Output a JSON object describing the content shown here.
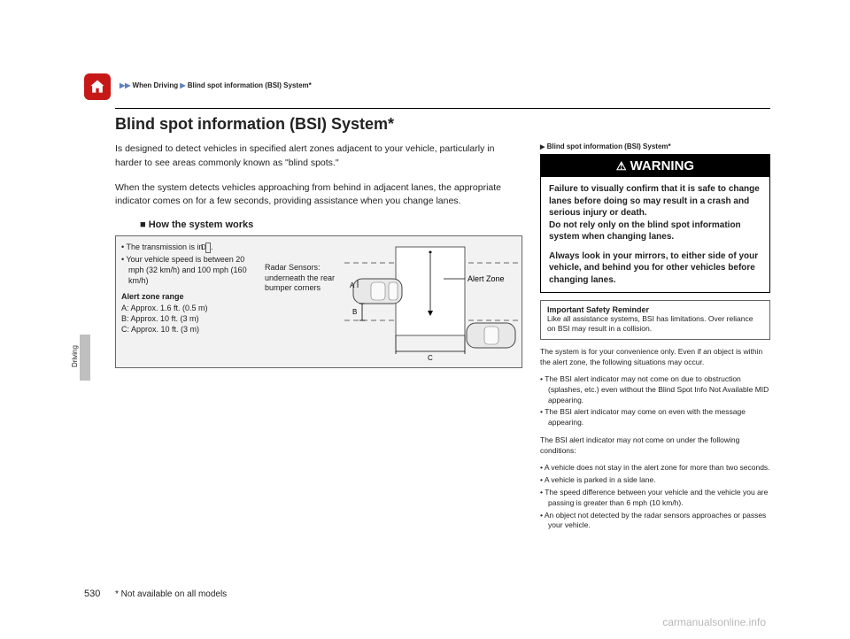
{
  "breadcrumb": {
    "seg1": "When Driving",
    "seg2": "Blind spot information (BSI) System*"
  },
  "title": "Blind spot information (BSI) System*",
  "intro1": "Is designed to detect vehicles in specified alert zones adjacent to your vehicle, particularly in harder to see areas commonly known as \"blind spots.\"",
  "intro2": "When the system detects vehicles approaching from behind in adjacent lanes, the appropriate indicator comes on for a few seconds, providing assistance when you change lanes.",
  "subhead": "How the system works",
  "diagram": {
    "bullet1_pre": "The transmission is in ",
    "bullet1_d": "D",
    "bullet1_post": ".",
    "bullet2": "Your vehicle speed is between 20 mph (32 km/h) and 100 mph (160 km/h)",
    "range_head": "Alert zone range",
    "rangeA": "A: Approx. 1.6 ft. (0.5 m)",
    "rangeB": "B: Approx. 10 ft. (3 m)",
    "rangeC": "C: Approx. 10 ft. (3 m)",
    "radar_label": "Radar Sensors: underneath the rear bumper corners",
    "alert_zone_label": "Alert Zone",
    "labels": {
      "A": "A",
      "B": "B",
      "C": "C"
    },
    "colors": {
      "road": "#d0d0d0",
      "lane_dash": "#666666",
      "car_body": "#e8e8e8",
      "car_stroke": "#444444",
      "zone_fill": "#ffffff",
      "zone_stroke": "#333333"
    }
  },
  "sidebar": {
    "crumb": "Blind spot information (BSI) System*",
    "warning_head": "WARNING",
    "warning_p1": "Failure to visually confirm that it is safe to change lanes before doing so may result in a crash and serious injury or death.",
    "warning_p2": "Do not rely only on the blind spot information system when changing lanes.",
    "warning_p3": "Always look in your mirrors, to either side of your vehicle, and behind you for other vehicles before changing lanes.",
    "reminder_head": "Important Safety Reminder",
    "reminder_body": "Like all assistance systems, BSI has limitations. Over reliance on BSI may result in a collision.",
    "para1": "The system is for your convenience only. Even if an object is within the alert zone, the following situations may occur.",
    "list1": [
      "The BSI alert indicator may not come on due to obstruction (splashes, etc.) even without the Blind Spot Info Not Available MID appearing.",
      "The BSI alert indicator may come on even with the message appearing."
    ],
    "para2": "The BSI alert indicator may not come on under the following conditions:",
    "list2": [
      "A vehicle does not stay in the alert zone for more than two seconds.",
      "A vehicle is parked in a side lane.",
      "The speed difference between your vehicle and the vehicle you are passing is greater than 6 mph (10 km/h).",
      "An object not detected by the radar sensors approaches or passes your vehicle."
    ]
  },
  "side_tab": "Driving",
  "page_num": "530",
  "footnote": "* Not available on all models",
  "watermark": "carmanualsonline.info"
}
